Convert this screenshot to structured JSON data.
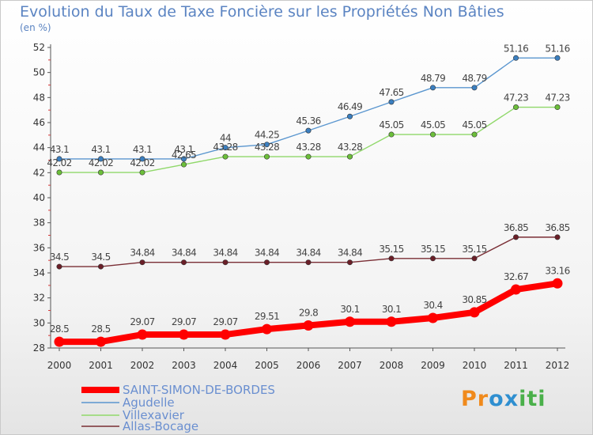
{
  "header": {
    "title": "Evolution du Taux de Taxe Foncière sur les Propriétés Non Bâties",
    "unit": "(en %)"
  },
  "brand": {
    "letters": [
      "P",
      "r",
      "o",
      "x",
      "i",
      "t",
      "i"
    ],
    "colors": [
      "#f08a1c",
      "#f08a1c",
      "#2f8fd0",
      "#2f8fd0",
      "#4ab04a",
      "#4ab04a",
      "#4ab04a"
    ]
  },
  "chart_data": {
    "type": "line",
    "x": [
      "2000",
      "2001",
      "2002",
      "2003",
      "2004",
      "2005",
      "2006",
      "2007",
      "2008",
      "2009",
      "2010",
      "2011",
      "2012"
    ],
    "ylim": [
      28,
      52
    ],
    "yticks": [
      "28",
      "30",
      "32",
      "34",
      "36",
      "38",
      "40",
      "42",
      "44",
      "46",
      "48",
      "50",
      "52"
    ],
    "grid": false,
    "legend_position": "bottom-left",
    "series": [
      {
        "name": "Agudelle",
        "color": "#5a96cf",
        "point_color": "#3b7fc0",
        "thick": false,
        "values": [
          43.1,
          43.1,
          43.1,
          43.1,
          44,
          44.25,
          45.36,
          46.49,
          47.65,
          48.79,
          48.79,
          51.16,
          51.16
        ],
        "labels": [
          "43.1",
          "43.1",
          "43.1",
          "43.1",
          "44",
          "44.25",
          "45.36",
          "46.49",
          "47.65",
          "48.79",
          "48.79",
          "51.16",
          "51.16"
        ]
      },
      {
        "name": "Villexavier",
        "color": "#90d86a",
        "point_color": "#6cbf3a",
        "thick": false,
        "values": [
          42.02,
          42.02,
          42.02,
          42.65,
          43.28,
          43.28,
          43.28,
          43.28,
          45.05,
          45.05,
          45.05,
          47.23,
          47.23
        ],
        "labels": [
          "42.02",
          "42.02",
          "42.02",
          "42.65",
          "43.28",
          "43.28",
          "43.28",
          "43.28",
          "45.05",
          "45.05",
          "45.05",
          "47.23",
          "47.23"
        ]
      },
      {
        "name": "Allas-Bocage",
        "color": "#7a2e35",
        "point_color": "#6b1f28",
        "thick": false,
        "values": [
          34.5,
          34.5,
          34.84,
          34.84,
          34.84,
          34.84,
          34.84,
          34.84,
          35.15,
          35.15,
          35.15,
          36.85,
          36.85
        ],
        "labels": [
          "34.5",
          "34.5",
          "34.84",
          "34.84",
          "34.84",
          "34.84",
          "34.84",
          "34.84",
          "35.15",
          "35.15",
          "35.15",
          "36.85",
          "36.85"
        ]
      },
      {
        "name": "SAINT-SIMON-DE-BORDES",
        "color": "#ff0000",
        "point_color": "#ff0000",
        "thick": true,
        "values": [
          28.5,
          28.5,
          29.07,
          29.07,
          29.07,
          29.51,
          29.8,
          30.1,
          30.1,
          30.4,
          30.85,
          32.67,
          33.16
        ],
        "labels": [
          "28.5",
          "28.5",
          "29.07",
          "29.07",
          "29.07",
          "29.51",
          "29.8",
          "30.1",
          "30.1",
          "30.4",
          "30.85",
          "32.67",
          "33.16"
        ]
      }
    ],
    "legend_order": [
      "SAINT-SIMON-DE-BORDES",
      "Agudelle",
      "Villexavier",
      "Allas-Bocage"
    ]
  }
}
